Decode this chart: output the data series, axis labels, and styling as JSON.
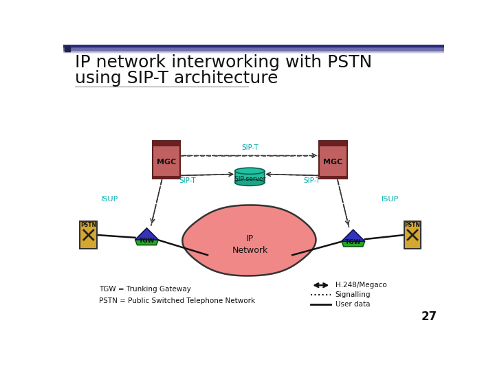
{
  "title_line1": "IP network interworking with PSTN",
  "title_line2": "using SIP-T architecture",
  "title_fontsize": 18,
  "background_color": "#ffffff",
  "slide_number": "27",
  "mgc_color": "#c06060",
  "mgc_border": "#5a2020",
  "tgw_green": "#22aa22",
  "tgw_blue": "#3333bb",
  "pstn_color": "#d4a830",
  "ip_network_color": "#f08888",
  "sip_server_color": "#20c0a0",
  "arrow_color": "#222222",
  "isup_color": "#00aaaa",
  "sipt_color": "#00aaaa",
  "footnote": "TGW = Trunking Gateway\nPSTN = Public Switched Telephone Network",
  "legend_h248": "H.248/Megaco",
  "legend_sig": "Signalling",
  "legend_user": "User data"
}
